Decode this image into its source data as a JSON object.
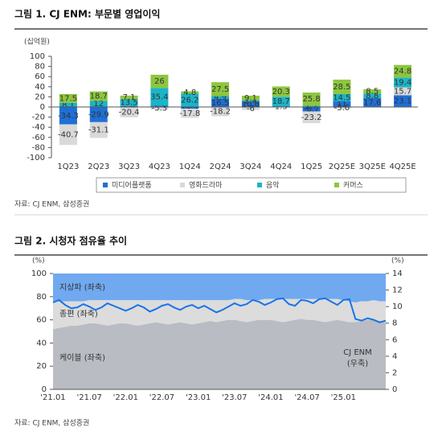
{
  "chart_data": [
    {
      "type": "bar",
      "title": "그림 1. CJ ENM: 부문별 영업이익",
      "unit": "(십억원)",
      "source": "자료: CJ ENM, 삼성증권",
      "categories": [
        "1Q23",
        "2Q23",
        "3Q23",
        "4Q23",
        "1Q24",
        "2Q24",
        "3Q24",
        "4Q24",
        "1Q25",
        "2Q25E",
        "3Q25E",
        "4Q25E"
      ],
      "series": [
        {
          "name": "미디어플랫폼",
          "color": "#1f6fd6",
          "values": [
            -34.3,
            -29.9,
            1.9,
            2.3,
            -3.5,
            16.5,
            10.8,
            1.5,
            -8.7,
            11.0,
            17.6,
            23.1
          ]
        },
        {
          "name": "영화드라마",
          "color": "#d9d9d9",
          "values": [
            -40.7,
            -31.1,
            -20.4,
            -5.3,
            -17.8,
            -18.2,
            -6.0,
            null,
            -23.2,
            -3.6,
            null,
            15.7
          ]
        },
        {
          "name": "음악",
          "color": "#1bb4c8",
          "values": [
            8.1,
            12.0,
            13.5,
            35.4,
            26.2,
            4.9,
            2.4,
            18.7,
            2.7,
            14.5,
            8.8,
            19.4
          ]
        },
        {
          "name": "커머스",
          "color": "#8dc63f",
          "values": [
            17.5,
            18.7,
            7.1,
            26.0,
            4.8,
            27.5,
            9.1,
            20.3,
            25.8,
            28.5,
            8.5,
            24.8
          ]
        }
      ],
      "ylim": [
        -100,
        100
      ],
      "yticks": [
        -100,
        -80,
        -60,
        -40,
        -20,
        0,
        20,
        40,
        60,
        80,
        100
      ]
    },
    {
      "type": "area",
      "title": "그림 2. 시청자 점유율 추이",
      "unit": "(%)",
      "y2unit": "(%)",
      "source": "자료: CJ ENM, 삼성증권",
      "x": [
        "'21.01",
        null,
        null,
        null,
        null,
        null,
        "'21.07",
        null,
        null,
        null,
        null,
        null,
        "'22.01",
        null,
        null,
        null,
        null,
        null,
        "'22.07",
        null,
        null,
        null,
        null,
        null,
        "'23.01",
        null,
        null,
        null,
        null,
        null,
        "'23.07",
        null,
        null,
        null,
        null,
        null,
        "'24.01",
        null,
        null,
        null,
        null,
        null,
        "'24.07",
        null,
        null,
        null,
        null,
        null,
        "'25.01",
        null,
        null,
        null,
        null,
        null,
        null,
        null
      ],
      "series": [
        {
          "name": "케이블 (좌축)",
          "color": "#b9bcc2",
          "values": [
            52,
            53,
            54,
            55,
            55,
            56,
            57,
            57,
            56,
            55,
            56,
            57,
            57,
            56,
            55,
            56,
            57,
            58,
            57,
            56,
            57,
            58,
            57,
            56,
            57,
            58,
            59,
            58,
            59,
            60,
            60,
            59,
            58,
            59,
            60,
            60,
            60,
            59,
            58,
            59,
            60,
            61,
            60,
            60,
            59,
            58,
            59,
            60,
            59,
            58,
            58,
            59,
            60,
            60,
            59,
            58
          ]
        },
        {
          "name": "종편 (좌축)",
          "color": "#dcdcdc",
          "values": [
            24,
            23,
            22,
            21,
            21,
            20,
            20,
            20,
            21,
            22,
            21,
            20,
            20,
            21,
            22,
            21,
            20,
            19,
            20,
            21,
            20,
            19,
            20,
            21,
            20,
            19,
            18,
            19,
            18,
            17,
            18,
            19,
            19,
            18,
            17,
            18,
            18,
            19,
            20,
            19,
            18,
            17,
            18,
            18,
            19,
            20,
            19,
            18,
            18,
            18,
            17,
            17,
            16,
            17,
            17,
            18
          ]
        },
        {
          "name": "지상파 (좌축)",
          "color": "#70a9f0",
          "values": [
            24,
            24,
            24,
            24,
            24,
            24,
            23,
            23,
            23,
            23,
            23,
            23,
            23,
            23,
            23,
            23,
            23,
            23,
            23,
            23,
            23,
            23,
            23,
            23,
            23,
            23,
            23,
            23,
            23,
            23,
            22,
            22,
            23,
            23,
            23,
            22,
            22,
            22,
            22,
            22,
            22,
            22,
            22,
            22,
            22,
            22,
            22,
            22,
            23,
            24,
            25,
            24,
            24,
            23,
            24,
            24
          ]
        },
        {
          "name": "CJ ENM",
          "note": "(우축)",
          "type": "line",
          "axis": "y2",
          "color": "#1a73e8",
          "values": [
            10.5,
            10.8,
            10.2,
            9.8,
            9.9,
            10.3,
            10.0,
            9.6,
            9.9,
            10.4,
            10.1,
            9.8,
            9.5,
            9.8,
            10.2,
            9.9,
            9.4,
            9.7,
            10.1,
            10.3,
            9.9,
            9.6,
            10.0,
            10.2,
            9.8,
            10.1,
            9.7,
            9.3,
            9.6,
            10.0,
            10.4,
            10.1,
            10.3,
            10.8,
            10.6,
            10.2,
            10.5,
            10.9,
            11.0,
            10.3,
            10.1,
            10.8,
            10.7,
            10.4,
            10.9,
            11.0,
            10.6,
            10.2,
            10.8,
            10.9,
            8.5,
            8.3,
            8.6,
            8.4,
            8.1,
            8.3
          ]
        }
      ],
      "ylim": [
        0,
        100
      ],
      "yticks": [
        0,
        20,
        40,
        60,
        80,
        100
      ],
      "y2lim": [
        0,
        14
      ],
      "y2ticks": [
        0,
        2,
        4,
        6,
        8,
        10,
        12,
        14
      ]
    }
  ]
}
